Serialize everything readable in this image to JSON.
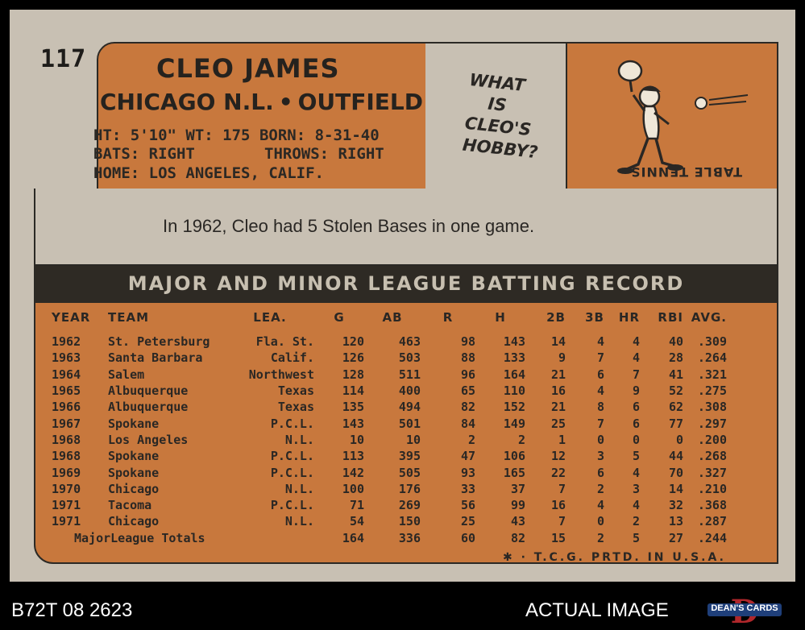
{
  "card": {
    "number": "117",
    "player_name": "CLEO JAMES",
    "team": "CHICAGO N.L.",
    "team_separator": "•",
    "position": "OUTFIELD",
    "bio": {
      "height": "HT: 5'10\"",
      "weight": "WT: 175",
      "born": "BORN: 8-31-40",
      "bats": "BATS: RIGHT",
      "throws": "THROWS: RIGHT",
      "home": "HOME: LOS ANGELES, CALIF."
    },
    "cartoon_question": [
      "WHAT",
      "IS",
      "CLEO'S",
      "HOBBY?"
    ],
    "cartoon_answer": "TABLE TENNIS",
    "fact": "In 1962, Cleo had 5 Stolen Bases in one game.",
    "record_title": "MAJOR AND MINOR LEAGUE BATTING RECORD",
    "columns": [
      "YEAR",
      "TEAM",
      "LEA.",
      "G",
      "AB",
      "R",
      "H",
      "2B",
      "3B",
      "HR",
      "RBI",
      "AVG."
    ],
    "rows": [
      [
        "1962",
        "St. Petersburg",
        "Fla. St.",
        "120",
        "463",
        "98",
        "143",
        "14",
        "4",
        "4",
        "40",
        ".309"
      ],
      [
        "1963",
        "Santa Barbara",
        "Calif.",
        "126",
        "503",
        "88",
        "133",
        "9",
        "7",
        "4",
        "28",
        ".264"
      ],
      [
        "1964",
        "Salem",
        "Northwest",
        "128",
        "511",
        "96",
        "164",
        "21",
        "6",
        "7",
        "41",
        ".321"
      ],
      [
        "1965",
        "Albuquerque",
        "Texas",
        "114",
        "400",
        "65",
        "110",
        "16",
        "4",
        "9",
        "52",
        ".275"
      ],
      [
        "1966",
        "Albuquerque",
        "Texas",
        "135",
        "494",
        "82",
        "152",
        "21",
        "8",
        "6",
        "62",
        ".308"
      ],
      [
        "1967",
        "Spokane",
        "P.C.L.",
        "143",
        "501",
        "84",
        "149",
        "25",
        "7",
        "6",
        "77",
        ".297"
      ],
      [
        "1968",
        "Los Angeles",
        "N.L.",
        "10",
        "10",
        "2",
        "2",
        "1",
        "0",
        "0",
        "0",
        ".200"
      ],
      [
        "1968",
        "Spokane",
        "P.C.L.",
        "113",
        "395",
        "47",
        "106",
        "12",
        "3",
        "5",
        "44",
        ".268"
      ],
      [
        "1969",
        "Spokane",
        "P.C.L.",
        "142",
        "505",
        "93",
        "165",
        "22",
        "6",
        "4",
        "70",
        ".327"
      ],
      [
        "1970",
        "Chicago",
        "N.L.",
        "100",
        "176",
        "33",
        "37",
        "7",
        "2",
        "3",
        "14",
        ".210"
      ],
      [
        "1971",
        "Tacoma",
        "P.C.L.",
        "71",
        "269",
        "56",
        "99",
        "16",
        "4",
        "4",
        "32",
        ".368"
      ],
      [
        "1971",
        "Chicago",
        "N.L.",
        "54",
        "150",
        "25",
        "43",
        "7",
        "0",
        "2",
        "13",
        ".287"
      ]
    ],
    "totals": {
      "label": "MajorLeague Totals",
      "values": [
        "164",
        "336",
        "60",
        "82",
        "15",
        "2",
        "5",
        "27",
        ".244"
      ]
    },
    "printer_note": "✱ · T.C.G. PRTD. IN U.S.A."
  },
  "footer": {
    "item_id": "B72T 08 2623",
    "actual_label": "ACTUAL IMAGE",
    "dealer_logo_text": "DEAN'S CARDS"
  },
  "colors": {
    "card_stock": "#c8c0b3",
    "panel_orange": "#c8783d",
    "ink": "#2d2a25",
    "background": "#000000"
  }
}
